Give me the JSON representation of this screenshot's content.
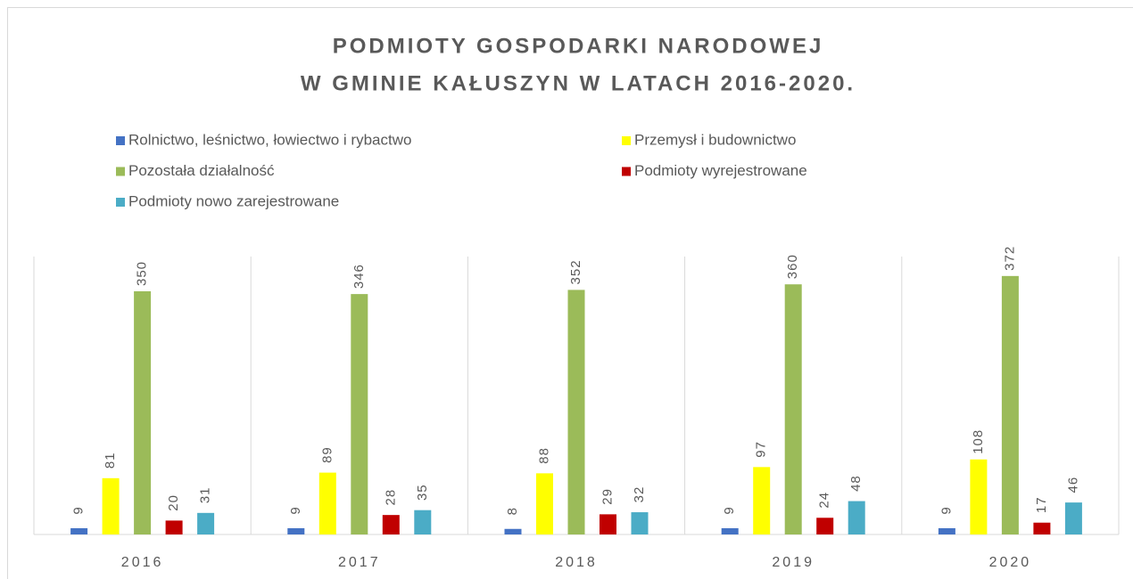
{
  "chart_data": {
    "type": "bar",
    "title": [
      "PODMIOTY GOSPODARKI NARODOWEJ",
      "W GMINIE KAŁUSZYN W LATACH 2016-2020."
    ],
    "categories": [
      "2016",
      "2017",
      "2018",
      "2019",
      "2020"
    ],
    "series": [
      {
        "name": "Rolnictwo, leśnictwo, łowiectwo i rybactwo",
        "color": "#4472c4",
        "values": [
          9,
          9,
          8,
          9,
          9
        ]
      },
      {
        "name": "Przemysł i budownictwo",
        "color": "#ffff00",
        "values": [
          81,
          89,
          88,
          97,
          108
        ]
      },
      {
        "name": "Pozostała działalność",
        "color": "#9bbb59",
        "values": [
          350,
          346,
          352,
          360,
          372
        ]
      },
      {
        "name": "Podmioty wyrejestrowane",
        "color": "#c00000",
        "values": [
          20,
          28,
          29,
          24,
          17
        ]
      },
      {
        "name": "Podmioty nowo zarejestrowane",
        "color": "#4bacc6",
        "values": [
          31,
          35,
          32,
          48,
          46
        ]
      }
    ],
    "ylim": [
      0,
      400
    ],
    "legend": "top"
  }
}
